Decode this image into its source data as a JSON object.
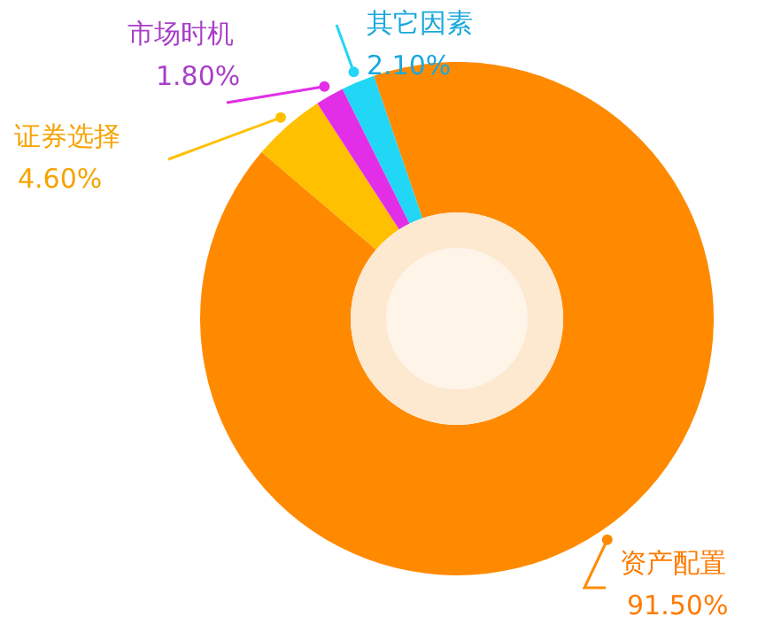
{
  "chart_data": {
    "type": "donut",
    "categories": [
      "资产配置",
      "证券选择",
      "市场时机",
      "其它因素"
    ],
    "values": [
      91.5,
      4.6,
      1.8,
      2.1
    ],
    "colors": [
      "#ff8a00",
      "#ffc000",
      "#e22ee6",
      "#22d6f5"
    ],
    "value_labels": [
      "91.50%",
      "4.60%",
      "1.80%",
      "2.10%"
    ]
  }
}
